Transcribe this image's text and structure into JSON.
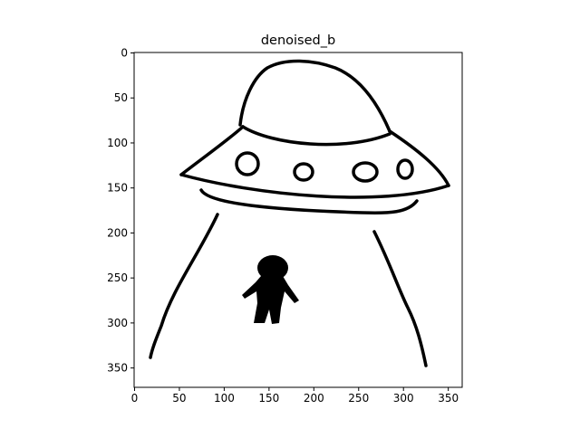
{
  "chart_data": {
    "type": "image",
    "title": "denoised_b",
    "xlim": [
      -0.5,
      365.5
    ],
    "ylim": [
      371.5,
      -0.5
    ],
    "xticks": [
      0,
      50,
      100,
      150,
      200,
      250,
      300,
      350
    ],
    "yticks": [
      0,
      50,
      100,
      150,
      200,
      250,
      300,
      350
    ]
  }
}
